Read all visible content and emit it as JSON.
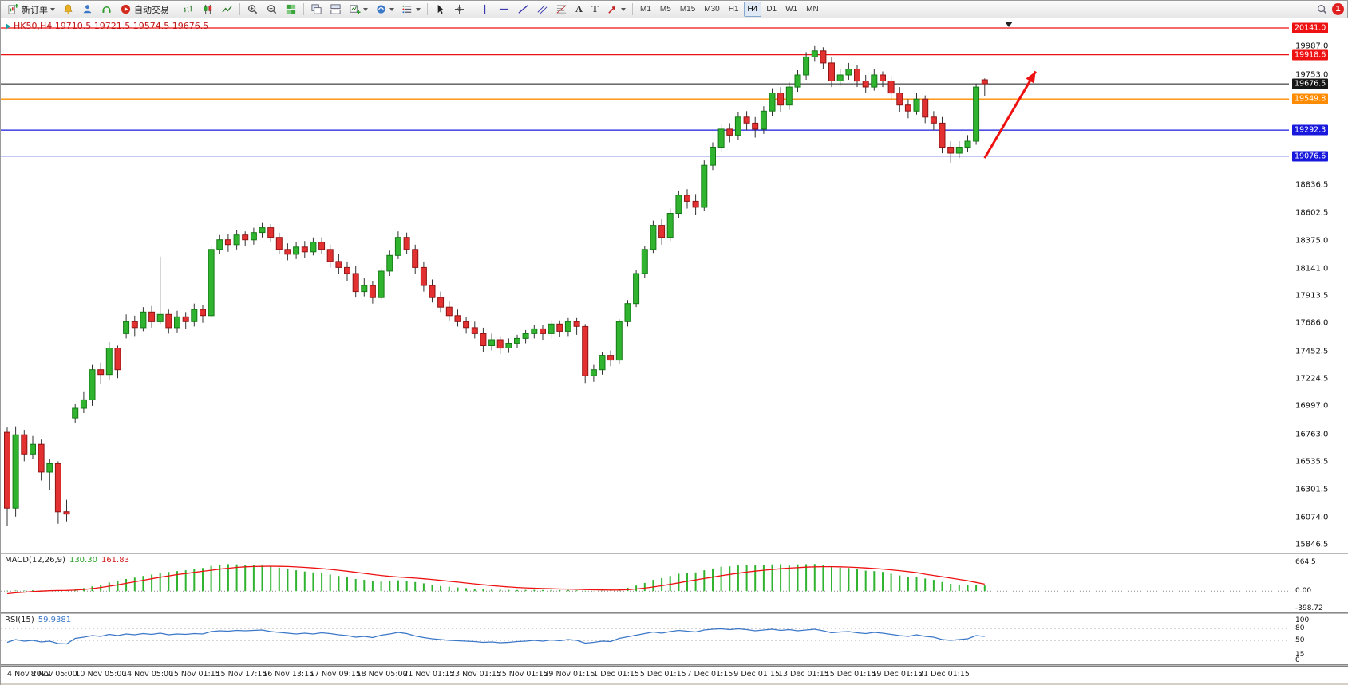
{
  "toolbar": {
    "new_order_label": "新订单",
    "autotrading_label": "自动交易",
    "timeframes": [
      "M1",
      "M5",
      "M15",
      "M30",
      "H1",
      "H4",
      "D1",
      "W1",
      "MN"
    ],
    "active_timeframe": "H4",
    "notification_count": "1",
    "glyphs": {
      "text_tool": "A",
      "text_label_tool": "T"
    }
  },
  "chart_data": {
    "type": "candlestick",
    "title": "HK50,H4 19710.5 19721.5 19574.5 19676.5",
    "symbol": "HK50",
    "timeframe": "H4",
    "ohlc_current": {
      "open": 19710.5,
      "high": 19721.5,
      "low": 19574.5,
      "close": 19676.5
    },
    "ylim": [
      15846.5,
      20141.0
    ],
    "y_axis_labels": [
      "19987.0",
      "19753.0",
      "18836.5",
      "18602.5",
      "18375.0",
      "18141.0",
      "17913.5",
      "17686.0",
      "17452.5",
      "17224.5",
      "16997.0",
      "16763.0",
      "16535.5",
      "16301.5",
      "16074.0",
      "15846.5"
    ],
    "x_axis_labels": [
      "4 Nov 2022",
      "8 Nov 05:00",
      "10 Nov 05:00",
      "14 Nov 05:00",
      "15 Nov 01:15",
      "15 Nov 17:15",
      "16 Nov 13:15",
      "17 Nov 09:15",
      "18 Nov 05:00",
      "21 Nov 01:15",
      "23 Nov 01:15",
      "25 Nov 01:15",
      "29 Nov 01:15",
      "1 Dec 01:15",
      "5 Dec 01:15",
      "7 Dec 01:15",
      "9 Dec 01:15",
      "13 Dec 01:15",
      "15 Dec 01:15",
      "19 Dec 01:15",
      "21 Dec 01:15"
    ],
    "levels": [
      {
        "label": "20141.0",
        "price": 20141.0,
        "color": "#ee1111",
        "kind": "resistance"
      },
      {
        "label": "19918.6",
        "price": 19918.6,
        "color": "#ee1111",
        "kind": "resistance"
      },
      {
        "label": "19676.5",
        "price": 19676.5,
        "color": "#161616",
        "kind": "bid"
      },
      {
        "label": "19549.8",
        "price": 19549.8,
        "color": "#ff8c00",
        "kind": "pivot"
      },
      {
        "label": "19292.3",
        "price": 19292.3,
        "color": "#1818dd",
        "kind": "support"
      },
      {
        "label": "19076.6",
        "price": 19076.6,
        "color": "#1818dd",
        "kind": "support"
      }
    ],
    "candles": [
      [
        16780,
        16820,
        16000,
        16150
      ],
      [
        16150,
        16830,
        16080,
        16760
      ],
      [
        16760,
        16800,
        16540,
        16600
      ],
      [
        16600,
        16750,
        16560,
        16680
      ],
      [
        16680,
        16720,
        16380,
        16450
      ],
      [
        16450,
        16560,
        16300,
        16520
      ],
      [
        16520,
        16540,
        16020,
        16120
      ],
      [
        16120,
        16220,
        16040,
        16100
      ],
      [
        16900,
        17020,
        16860,
        16980
      ],
      [
        16980,
        17120,
        16940,
        17050
      ],
      [
        17050,
        17340,
        17000,
        17300
      ],
      [
        17300,
        17360,
        17180,
        17260
      ],
      [
        17260,
        17530,
        17220,
        17480
      ],
      [
        17480,
        17500,
        17230,
        17300
      ],
      [
        17600,
        17760,
        17560,
        17700
      ],
      [
        17700,
        17750,
        17580,
        17650
      ],
      [
        17650,
        17820,
        17620,
        17780
      ],
      [
        17780,
        17830,
        17650,
        17700
      ],
      [
        17700,
        18240,
        17680,
        17760
      ],
      [
        17760,
        17800,
        17600,
        17650
      ],
      [
        17650,
        17790,
        17610,
        17740
      ],
      [
        17740,
        17780,
        17640,
        17700
      ],
      [
        17700,
        17850,
        17660,
        17800
      ],
      [
        17800,
        17840,
        17690,
        17750
      ],
      [
        17750,
        18330,
        17730,
        18300
      ],
      [
        18300,
        18420,
        18260,
        18380
      ],
      [
        18380,
        18430,
        18280,
        18340
      ],
      [
        18340,
        18460,
        18300,
        18420
      ],
      [
        18420,
        18450,
        18330,
        18380
      ],
      [
        18380,
        18480,
        18340,
        18440
      ],
      [
        18440,
        18520,
        18400,
        18480
      ],
      [
        18480,
        18510,
        18360,
        18400
      ],
      [
        18400,
        18440,
        18260,
        18300
      ],
      [
        18300,
        18350,
        18210,
        18260
      ],
      [
        18260,
        18360,
        18220,
        18320
      ],
      [
        18320,
        18370,
        18230,
        18280
      ],
      [
        18280,
        18400,
        18250,
        18360
      ],
      [
        18360,
        18400,
        18260,
        18300
      ],
      [
        18300,
        18340,
        18150,
        18200
      ],
      [
        18200,
        18260,
        18100,
        18150
      ],
      [
        18150,
        18200,
        18040,
        18100
      ],
      [
        18100,
        18160,
        17900,
        17950
      ],
      [
        17950,
        18060,
        17910,
        18000
      ],
      [
        18000,
        18040,
        17850,
        17900
      ],
      [
        17900,
        18150,
        17880,
        18120
      ],
      [
        18120,
        18290,
        18080,
        18250
      ],
      [
        18250,
        18450,
        18220,
        18400
      ],
      [
        18400,
        18440,
        18260,
        18300
      ],
      [
        18300,
        18340,
        18100,
        18150
      ],
      [
        18150,
        18200,
        17950,
        18000
      ],
      [
        18000,
        18050,
        17860,
        17900
      ],
      [
        17900,
        17950,
        17780,
        17820
      ],
      [
        17820,
        17870,
        17710,
        17750
      ],
      [
        17750,
        17800,
        17660,
        17700
      ],
      [
        17700,
        17740,
        17600,
        17650
      ],
      [
        17650,
        17700,
        17560,
        17600
      ],
      [
        17600,
        17650,
        17450,
        17500
      ],
      [
        17500,
        17600,
        17460,
        17550
      ],
      [
        17550,
        17580,
        17430,
        17480
      ],
      [
        17480,
        17560,
        17440,
        17520
      ],
      [
        17520,
        17590,
        17480,
        17560
      ],
      [
        17560,
        17630,
        17520,
        17600
      ],
      [
        17600,
        17670,
        17560,
        17640
      ],
      [
        17640,
        17670,
        17550,
        17600
      ],
      [
        17600,
        17710,
        17560,
        17680
      ],
      [
        17680,
        17710,
        17570,
        17620
      ],
      [
        17620,
        17730,
        17580,
        17700
      ],
      [
        17700,
        17730,
        17590,
        17660
      ],
      [
        17660,
        17680,
        17190,
        17250
      ],
      [
        17250,
        17340,
        17200,
        17300
      ],
      [
        17300,
        17450,
        17260,
        17420
      ],
      [
        17420,
        17460,
        17330,
        17380
      ],
      [
        17380,
        17720,
        17350,
        17700
      ],
      [
        17700,
        17880,
        17660,
        17850
      ],
      [
        17850,
        18130,
        17820,
        18100
      ],
      [
        18100,
        18330,
        18060,
        18300
      ],
      [
        18300,
        18540,
        18270,
        18500
      ],
      [
        18500,
        18550,
        18340,
        18400
      ],
      [
        18400,
        18640,
        18370,
        18600
      ],
      [
        18600,
        18790,
        18560,
        18750
      ],
      [
        18750,
        18800,
        18640,
        18700
      ],
      [
        18700,
        18760,
        18590,
        18650
      ],
      [
        18650,
        19040,
        18620,
        19000
      ],
      [
        19000,
        19190,
        18960,
        19150
      ],
      [
        19150,
        19340,
        19110,
        19300
      ],
      [
        19300,
        19350,
        19190,
        19250
      ],
      [
        19250,
        19440,
        19210,
        19400
      ],
      [
        19400,
        19450,
        19290,
        19350
      ],
      [
        19350,
        19400,
        19230,
        19300
      ],
      [
        19300,
        19490,
        19260,
        19450
      ],
      [
        19450,
        19640,
        19410,
        19600
      ],
      [
        19600,
        19650,
        19440,
        19500
      ],
      [
        19500,
        19690,
        19460,
        19650
      ],
      [
        19650,
        19790,
        19610,
        19750
      ],
      [
        19750,
        19940,
        19710,
        19900
      ],
      [
        19900,
        19990,
        19860,
        19950
      ],
      [
        19950,
        19980,
        19800,
        19850
      ],
      [
        19850,
        19900,
        19650,
        19700
      ],
      [
        19700,
        19800,
        19660,
        19750
      ],
      [
        19750,
        19850,
        19710,
        19800
      ],
      [
        19800,
        19830,
        19650,
        19700
      ],
      [
        19700,
        19750,
        19600,
        19650
      ],
      [
        19650,
        19800,
        19620,
        19750
      ],
      [
        19750,
        19780,
        19650,
        19700
      ],
      [
        19700,
        19740,
        19550,
        19600
      ],
      [
        19600,
        19650,
        19440,
        19500
      ],
      [
        19500,
        19550,
        19390,
        19450
      ],
      [
        19450,
        19600,
        19420,
        19550
      ],
      [
        19550,
        19580,
        19350,
        19400
      ],
      [
        19400,
        19450,
        19290,
        19350
      ],
      [
        19350,
        19400,
        19100,
        19150
      ],
      [
        19150,
        19200,
        19020,
        19100
      ],
      [
        19100,
        19200,
        19060,
        19150
      ],
      [
        19150,
        19250,
        19110,
        19200
      ],
      [
        19200,
        19680,
        19170,
        19650
      ],
      [
        19710.5,
        19721.5,
        19574.5,
        19676.5
      ]
    ],
    "annotations": [
      {
        "type": "arrow",
        "color": "#ee1111",
        "from": {
          "bar": 115,
          "price": 19060
        },
        "to": {
          "bar": 121,
          "price": 19780
        }
      }
    ],
    "macd": {
      "name": "MACD(12,26,9)",
      "value_macd": "130.30",
      "value_signal": "161.83",
      "axis_labels": [
        "664.5",
        "0.00",
        "-398.72"
      ],
      "ylim": [
        -398.72,
        664.5
      ],
      "histogram": [
        10,
        18,
        14,
        20,
        16,
        22,
        15,
        12,
        40,
        70,
        110,
        150,
        200,
        230,
        280,
        310,
        350,
        380,
        420,
        440,
        460,
        480,
        510,
        530,
        580,
        610,
        620,
        615,
        605,
        600,
        590,
        570,
        540,
        510,
        480,
        450,
        430,
        410,
        380,
        350,
        320,
        280,
        260,
        230,
        220,
        230,
        250,
        240,
        210,
        180,
        150,
        120,
        100,
        85,
        70,
        60,
        45,
        40,
        32,
        28,
        26,
        28,
        30,
        26,
        28,
        24,
        26,
        20,
        8,
        6,
        10,
        12,
        40,
        80,
        130,
        190,
        260,
        300,
        350,
        400,
        420,
        430,
        480,
        520,
        560,
        570,
        590,
        600,
        590,
        600,
        615,
        620,
        610,
        615,
        620,
        625,
        600,
        560,
        540,
        530,
        500,
        470,
        460,
        440,
        400,
        360,
        330,
        320,
        290,
        260,
        210,
        170,
        150,
        135,
        132,
        130.3
      ],
      "signal": [
        -60,
        -40,
        -25,
        -10,
        0,
        10,
        15,
        18,
        25,
        40,
        60,
        85,
        115,
        145,
        180,
        215,
        250,
        285,
        320,
        350,
        380,
        405,
        430,
        455,
        480,
        505,
        525,
        545,
        558,
        566,
        570,
        572,
        570,
        565,
        556,
        545,
        532,
        518,
        500,
        480,
        458,
        432,
        408,
        383,
        360,
        340,
        325,
        312,
        300,
        285,
        268,
        248,
        228,
        208,
        188,
        168,
        148,
        130,
        113,
        98,
        86,
        76,
        68,
        61,
        56,
        51,
        48,
        44,
        38,
        32,
        28,
        26,
        28,
        36,
        50,
        70,
        96,
        126,
        158,
        192,
        226,
        258,
        290,
        322,
        354,
        384,
        412,
        438,
        460,
        480,
        498,
        514,
        528,
        540,
        550,
        558,
        562,
        562,
        558,
        552,
        544,
        533,
        520,
        506,
        489,
        470,
        449,
        427,
        390,
        360,
        330,
        300,
        270,
        240,
        200,
        161.83
      ]
    },
    "rsi": {
      "name": "RSI(15)",
      "value": "59.9381",
      "axis_labels": [
        "100",
        "80",
        "50",
        "15",
        "0"
      ],
      "levels": [
        80,
        50
      ],
      "ylim": [
        0,
        100
      ],
      "values": [
        45,
        52,
        48,
        50,
        46,
        48,
        42,
        41,
        55,
        58,
        62,
        60,
        65,
        62,
        66,
        64,
        67,
        65,
        68,
        64,
        66,
        65,
        67,
        66,
        72,
        74,
        73,
        75,
        74,
        75,
        76,
        72,
        70,
        68,
        66,
        68,
        66,
        69,
        67,
        64,
        62,
        58,
        60,
        57,
        63,
        66,
        70,
        67,
        61,
        57,
        54,
        52,
        50,
        49,
        48,
        47,
        45,
        46,
        44,
        45,
        47,
        48,
        50,
        48,
        51,
        49,
        52,
        50,
        43,
        45,
        48,
        47,
        55,
        59,
        63,
        67,
        71,
        68,
        72,
        75,
        73,
        71,
        76,
        78,
        79,
        77,
        79,
        77,
        74,
        76,
        78,
        75,
        77,
        74,
        76,
        78,
        74,
        69,
        71,
        72,
        69,
        67,
        70,
        68,
        65,
        62,
        60,
        64,
        60,
        58,
        52,
        50,
        52,
        54,
        62,
        59.94
      ]
    }
  }
}
